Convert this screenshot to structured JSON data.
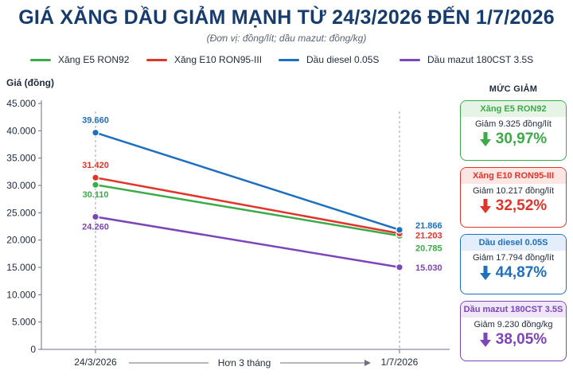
{
  "header": {
    "title": "GIÁ XĂNG DẦU GIẢM MẠNH TỪ 24/3/2026 ĐẾN 1/7/2026",
    "subtitle": "(Đơn vị: đồng/lít; dầu mazut: đồng/kg)"
  },
  "chart_data": {
    "type": "line",
    "x": [
      "24/3/2026",
      "1/7/2026"
    ],
    "ylabel": "Giá (đồng)",
    "ylim": [
      0,
      45000
    ],
    "yticks": [
      0,
      5000,
      10000,
      15000,
      20000,
      25000,
      30000,
      35000,
      40000,
      45000
    ],
    "ytick_labels": [
      "0",
      "5.000",
      "10.000",
      "15.000",
      "20.000",
      "25.000",
      "30.000",
      "35.000",
      "40.000",
      "45.000"
    ],
    "x_annotation": "Hơn 3 tháng",
    "grid": false,
    "legend_placement": "top",
    "series": [
      {
        "name": "Xăng E5 RON92",
        "color": "#3daa4a",
        "values": [
          30110,
          20785
        ],
        "labels": [
          "30.110",
          "20.785"
        ]
      },
      {
        "name": "Xăng E10 RON95-III",
        "color": "#e0352b",
        "values": [
          31420,
          21203
        ],
        "labels": [
          "31.420",
          "21.203"
        ]
      },
      {
        "name": "Dầu diesel 0.05S",
        "color": "#1f6fbf",
        "values": [
          39660,
          21866
        ],
        "labels": [
          "39.660",
          "21.866"
        ]
      },
      {
        "name": "Dầu mazut 180CST 3.5S",
        "color": "#7b46b8",
        "values": [
          24260,
          15030
        ],
        "labels": [
          "24.260",
          "15.030"
        ]
      }
    ]
  },
  "panel": {
    "title": "MỨC GIẢM",
    "cards": [
      {
        "name": "Xăng E5 RON92",
        "detail": "Giảm 9.325 đồng/lít",
        "percent": "30,97%",
        "color": "#3daa4a",
        "bg": "#e6f4e6",
        "icon": "arrow-down-icon"
      },
      {
        "name": "Xăng E10 RON95-III",
        "detail": "Giảm 10.217 đồng/lít",
        "percent": "32,52%",
        "color": "#e0352b",
        "bg": "#fce6e4",
        "icon": "arrow-down-icon"
      },
      {
        "name": "Dầu diesel 0.05S",
        "detail": "Giảm 17.794 đồng/lít",
        "percent": "44,87%",
        "color": "#1f6fbf",
        "bg": "#e3eefa",
        "icon": "arrow-down-icon"
      },
      {
        "name": "Dầu mazut 180CST 3.5S",
        "detail": "Giảm 9.230 đồng/kg",
        "percent": "38,05%",
        "color": "#7b46b8",
        "bg": "#efe6f8",
        "icon": "arrow-down-icon"
      }
    ]
  }
}
